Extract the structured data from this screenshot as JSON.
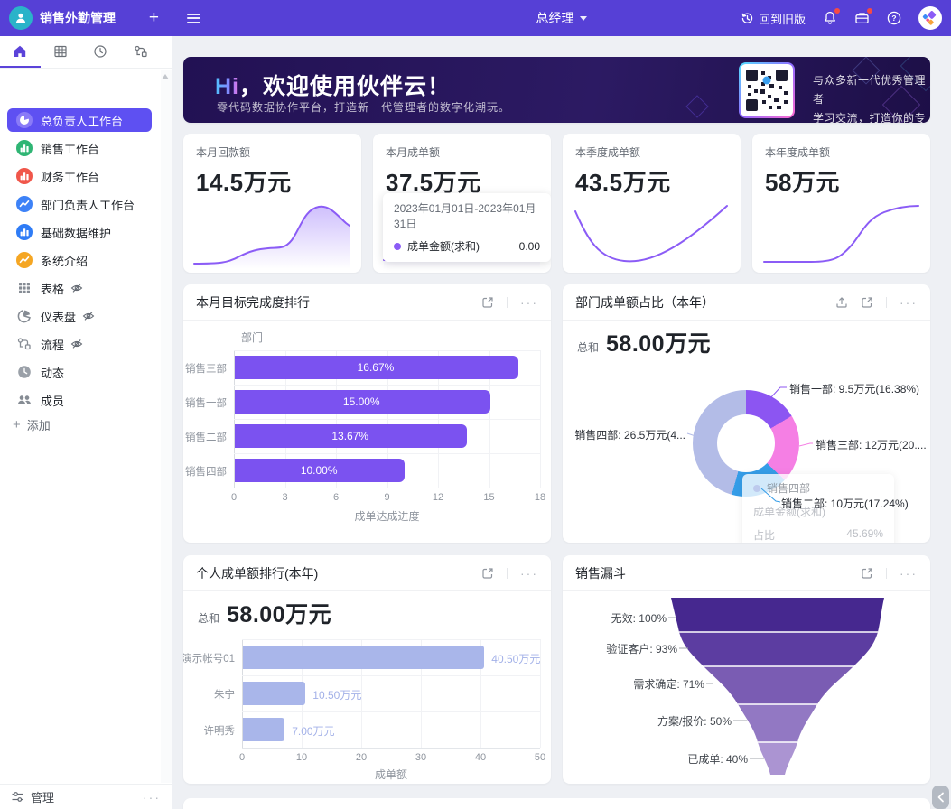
{
  "topbar": {
    "app_title": "销售外勤管理",
    "add_glyph": "+",
    "role": "总经理",
    "back_to_old_label": "回到旧版",
    "help_glyph": "?"
  },
  "sidebar": {
    "tabs": [
      "home",
      "table",
      "history",
      "flow"
    ],
    "items": [
      {
        "label": "总负责人工作台",
        "icon": "pie-chart",
        "color": "#8a7bf7",
        "active": true
      },
      {
        "label": "销售工作台",
        "icon": "bar-chart",
        "color": "#2fb574"
      },
      {
        "label": "财务工作台",
        "icon": "bar-chart",
        "color": "#f0564a"
      },
      {
        "label": "部门负责人工作台",
        "icon": "line-chart",
        "color": "#3d82f7"
      },
      {
        "label": "基础数据维护",
        "icon": "bar-chart",
        "color": "#2f7cf6"
      },
      {
        "label": "系统介绍",
        "icon": "line-chart",
        "color": "#f5a623"
      },
      {
        "label": "表格",
        "icon": "grid",
        "hidden_eye": true
      },
      {
        "label": "仪表盘",
        "icon": "gauge",
        "hidden_eye": true
      },
      {
        "label": "流程",
        "icon": "flow",
        "hidden_eye": true
      },
      {
        "label": "动态",
        "icon": "activity"
      },
      {
        "label": "成员",
        "icon": "members"
      }
    ],
    "add_label": "添加",
    "manage_label": "管理"
  },
  "banner": {
    "greeting_accent": "Hi",
    "greeting_rest": "，欢迎使用伙伴云！",
    "subtitle": "零代码数据协作平台，打造新一代管理者的数字化潮玩。",
    "qr_text_line1": "与众多新一代优秀管理者",
    "qr_text_line2": "学习交流，打造你的专属CRM"
  },
  "stats": [
    {
      "title": "本月回款额",
      "value": "14.5万元"
    },
    {
      "title": "本月成单额",
      "value": "37.5万元",
      "tooltip": {
        "date_range": "2023年01月01日-2023年01月31日",
        "series": "成单金额(求和)",
        "value": "0.00"
      }
    },
    {
      "title": "本季度成单额",
      "value": "43.5万元"
    },
    {
      "title": "本年度成单额",
      "value": "58万元"
    }
  ],
  "cards": {
    "monthly_target": {
      "title": "本月目标完成度排行"
    },
    "dept_share": {
      "title": "部门成单额占比（本年）",
      "sum_label": "总和",
      "sum_value": "58.00万元"
    },
    "personal_rank": {
      "title": "个人成单额排行(本年)",
      "sum_label": "总和",
      "sum_value": "58.00万元"
    },
    "funnel": {
      "title": "销售漏斗"
    }
  },
  "chart_data": [
    {
      "id": "monthly_target",
      "type": "bar",
      "orientation": "horizontal",
      "title": "本月目标完成度排行",
      "categories": [
        "销售三部",
        "销售一部",
        "销售二部",
        "销售四部"
      ],
      "values": [
        16.67,
        15.0,
        13.67,
        10.0
      ],
      "bar_labels": [
        "16.67%",
        "15.00%",
        "13.67%",
        "10.00%"
      ],
      "xlabel": "成单达成进度",
      "ylabel": "部门",
      "xlim": [
        0,
        18
      ],
      "xticks": [
        0,
        3,
        6,
        9,
        12,
        15,
        18
      ],
      "bar_color": "#7b52f0",
      "grid": true
    },
    {
      "id": "dept_share",
      "type": "pie",
      "title": "部门成单额占比（本年）",
      "total_label": "总和",
      "total_value": "58.00万元",
      "slices": [
        {
          "name": "销售一部",
          "value_wan": 9.5,
          "percent": 16.38,
          "color": "#8c55f2",
          "label": "销售一部: 9.5万元(16.38%)"
        },
        {
          "name": "销售三部",
          "value_wan": 12,
          "percent": 20.69,
          "color": "#f57fe4",
          "label": "销售三部: 12万元(20...."
        },
        {
          "name": "销售二部",
          "value_wan": 10,
          "percent": 17.24,
          "color": "#359de8",
          "label": "销售二部: 10万元(17.24%)"
        },
        {
          "name": "销售四部",
          "value_wan": 26.5,
          "percent": 45.69,
          "color": "#b3bce7",
          "label": "销售四部: 26.5万元(4..."
        }
      ],
      "tooltip": {
        "title": "销售四部",
        "row1_label": "成单金额(求和)",
        "row1_value": "",
        "row2_label": "占比",
        "row2_value": "45.69%"
      }
    },
    {
      "id": "personal_rank",
      "type": "bar",
      "orientation": "horizontal",
      "title": "个人成单额排行(本年)",
      "categories": [
        "演示帐号01",
        "朱宁",
        "许明秀"
      ],
      "values": [
        40.5,
        10.5,
        7.0
      ],
      "bar_labels": [
        "40.50万元",
        "10.50万元",
        "7.00万元"
      ],
      "xlabel": "成单额",
      "xlim": [
        0,
        50
      ],
      "xticks": [
        0,
        10,
        20,
        30,
        40,
        50
      ],
      "bar_color": "#a9b6ea",
      "value_label_color": "#a3b1e8",
      "grid": true
    },
    {
      "id": "funnel",
      "type": "funnel",
      "title": "销售漏斗",
      "stages": [
        {
          "label": "无效: 100%",
          "name": "无效",
          "percent": 100,
          "color": "#46288f"
        },
        {
          "label": "验证客户: 93%",
          "name": "验证客户",
          "percent": 93,
          "color": "#5c3da1"
        },
        {
          "label": "需求确定: 71%",
          "name": "需求确定",
          "percent": 71,
          "color": "#7a5cb3"
        },
        {
          "label": "方案/报价: 50%",
          "name": "方案/报价",
          "percent": 50,
          "color": "#9278c3"
        },
        {
          "label": "已成单: 40%",
          "name": "已成单",
          "percent": 40,
          "color": "#ab94d2"
        }
      ]
    }
  ]
}
